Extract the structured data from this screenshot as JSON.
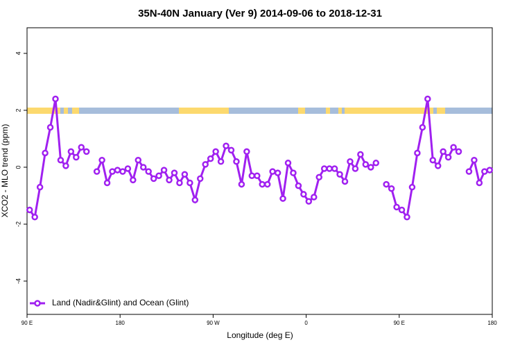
{
  "chart_data": {
    "type": "line",
    "title": "35N-40N January (Ver 9)   2014-09-06 to 2018-12-31",
    "x_label": "Longitude (deg E)",
    "y_label": "XCO2 - MLO trend (ppm)",
    "x": [
      92.5,
      97.5,
      102.5,
      107.5,
      112.5,
      117.5,
      122.5,
      127.5,
      132.5,
      137.5,
      142.5,
      147.5,
      152.5,
      157.5,
      162.5,
      167.5,
      172.5,
      177.5,
      182.5,
      187.5,
      192.5,
      197.5,
      202.5,
      207.5,
      212.5,
      217.5,
      222.5,
      227.5,
      232.5,
      237.5,
      242.5,
      247.5,
      252.5,
      257.5,
      262.5,
      267.5,
      272.5,
      277.5,
      282.5,
      287.5,
      292.5,
      297.5,
      302.5,
      307.5,
      312.5,
      317.5,
      322.5,
      327.5,
      332.5,
      337.5,
      342.5,
      347.5,
      352.5,
      357.5,
      362.5,
      367.5,
      372.5,
      377.5,
      382.5,
      387.5,
      392.5,
      397.5,
      402.5,
      407.5,
      412.5,
      417.5,
      422.5,
      427.5,
      432.5,
      437.5,
      442.5,
      447.5,
      452.5,
      457.5,
      462.5,
      467.5,
      472.5,
      477.5,
      482.5,
      487.5,
      492.5,
      497.5,
      502.5,
      507.5,
      512.5,
      517.5,
      522.5,
      527.5,
      532.5,
      537.5
    ],
    "series": [
      {
        "name": "Land (Nadir&Glint) and Ocean (Glint)",
        "color": "#a020f0",
        "values": [
          -1.5,
          -1.75,
          -0.7,
          0.5,
          1.4,
          2.4,
          0.25,
          0.05,
          0.55,
          0.35,
          0.7,
          0.55,
          null,
          -0.15,
          0.25,
          -0.55,
          -0.15,
          -0.1,
          -0.15,
          -0.05,
          -0.45,
          0.25,
          0.0,
          -0.15,
          -0.4,
          -0.3,
          -0.1,
          -0.45,
          -0.2,
          -0.55,
          -0.25,
          -0.55,
          -1.15,
          -0.4,
          0.1,
          0.3,
          0.55,
          0.2,
          0.75,
          0.6,
          0.2,
          -0.6,
          0.55,
          -0.3,
          -0.3,
          -0.6,
          -0.6,
          -0.15,
          -0.2,
          -1.1,
          0.15,
          -0.2,
          -0.65,
          -0.95,
          -1.2,
          -1.05,
          -0.35,
          -0.05,
          -0.05,
          -0.05,
          -0.25,
          -0.5,
          0.2,
          -0.05,
          0.45,
          0.1,
          0.0,
          0.15,
          null,
          -0.6,
          -0.75,
          -1.4,
          -1.5,
          -1.75,
          -0.7,
          0.5,
          1.4,
          2.4,
          0.25,
          0.05,
          0.55,
          0.35,
          0.7,
          0.55,
          null,
          -0.15,
          0.25,
          -0.55,
          -0.15,
          -0.1
        ]
      }
    ],
    "xlim": [
      90,
      540
    ],
    "xticks": [
      {
        "value": 90,
        "label": "90 E"
      },
      180,
      {
        "value": 270,
        "label": "90 W"
      },
      {
        "value": 360,
        "label": "0"
      },
      {
        "value": 450,
        "label": "90 E"
      },
      {
        "value": 540,
        "label": "180"
      }
    ],
    "ylim": [
      -5.17,
      4.9
    ],
    "yticks": [
      -4,
      -2,
      0,
      2,
      4
    ],
    "legend": "bottom-left"
  }
}
